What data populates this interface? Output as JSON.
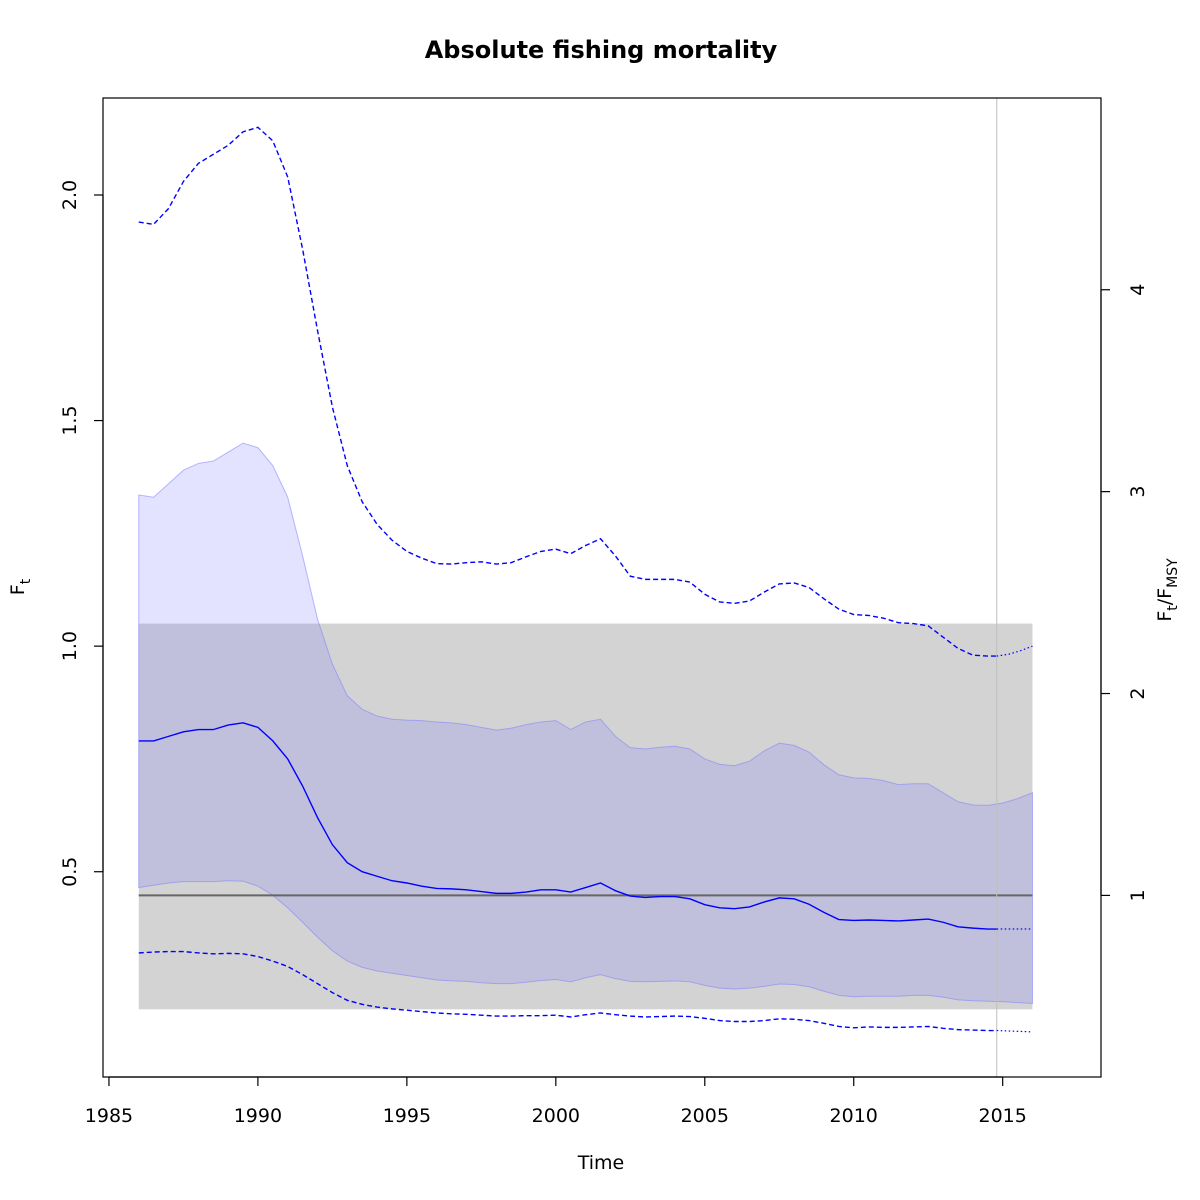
{
  "chart_data": {
    "type": "line",
    "title": "Absolute fishing mortality",
    "xlabel": "Time",
    "ylabel": "F",
    "ylabel_sub": "t",
    "y2label_num": "F",
    "y2label_num_sub": "t",
    "y2label_sep": "/",
    "y2label_den": "F",
    "y2label_den_sub": "MSY",
    "xlim": [
      1984.8,
      2018.3
    ],
    "ylim": [
      0.045,
      2.215
    ],
    "y2_scale": 0.4475,
    "xticks": [
      "1985",
      "1990",
      "1995",
      "2000",
      "2005",
      "2010",
      "2015"
    ],
    "yticks": [
      "0.5",
      "1.0",
      "1.5",
      "2.0"
    ],
    "y2ticks": [
      "1",
      "2",
      "3",
      "4"
    ],
    "last_data_year": 2014.8,
    "fmsy": 0.4475,
    "fmsy_band": {
      "x": [
        1986,
        2016
      ],
      "lower": 0.195,
      "upper": 1.05
    },
    "x": [
      1986,
      1986.5,
      1987,
      1987.5,
      1988,
      1988.5,
      1989,
      1989.5,
      1990,
      1990.5,
      1991,
      1991.5,
      1992,
      1992.5,
      1993,
      1993.5,
      1994,
      1994.5,
      1995,
      1995.5,
      1996,
      1996.5,
      1997,
      1997.5,
      1998,
      1998.5,
      1999,
      1999.5,
      2000,
      2000.5,
      2001,
      2001.5,
      2002,
      2002.5,
      2003,
      2003.5,
      2004,
      2004.5,
      2005,
      2005.5,
      2006,
      2006.5,
      2007,
      2007.5,
      2008,
      2008.5,
      2009,
      2009.5,
      2010,
      2010.5,
      2011,
      2011.5,
      2012,
      2012.5,
      2013,
      2013.5,
      2014,
      2014.5,
      2014.8
    ],
    "x_pred": [
      2014.8,
      2015.2,
      2015.6,
      2016
    ],
    "series": [
      {
        "name": "",
        "style": "solid",
        "color": "#0000ff",
        "values": [
          0.79,
          0.79,
          0.8,
          0.81,
          0.815,
          0.815,
          0.825,
          0.83,
          0.82,
          0.79,
          0.75,
          0.69,
          0.62,
          0.56,
          0.52,
          0.5,
          0.49,
          0.48,
          0.475,
          0.468,
          0.463,
          0.462,
          0.46,
          0.456,
          0.452,
          0.452,
          0.455,
          0.46,
          0.46,
          0.455,
          0.465,
          0.475,
          0.458,
          0.446,
          0.443,
          0.445,
          0.445,
          0.44,
          0.427,
          0.42,
          0.418,
          0.422,
          0.433,
          0.442,
          0.44,
          0.428,
          0.41,
          0.394,
          0.392,
          0.393,
          0.392,
          0.391,
          0.393,
          0.395,
          0.388,
          0.378,
          0.375,
          0.373,
          0.373
        ],
        "pred": [
          0.373,
          0.373,
          0.373,
          0.373
        ]
      },
      {
        "name": "",
        "style": "dashed",
        "color": "#0000ff",
        "values": [
          1.94,
          1.935,
          1.97,
          2.03,
          2.07,
          2.09,
          2.11,
          2.14,
          2.15,
          2.12,
          2.04,
          1.88,
          1.7,
          1.53,
          1.4,
          1.32,
          1.27,
          1.235,
          1.21,
          1.195,
          1.183,
          1.182,
          1.185,
          1.187,
          1.182,
          1.185,
          1.198,
          1.21,
          1.215,
          1.205,
          1.223,
          1.238,
          1.2,
          1.155,
          1.148,
          1.148,
          1.148,
          1.142,
          1.115,
          1.098,
          1.095,
          1.1,
          1.12,
          1.138,
          1.14,
          1.13,
          1.105,
          1.082,
          1.07,
          1.068,
          1.062,
          1.052,
          1.05,
          1.045,
          1.02,
          0.995,
          0.98,
          0.978,
          0.978
        ],
        "pred": [
          0.978,
          0.982,
          0.99,
          1.0
        ]
      },
      {
        "name": "",
        "style": "dashed",
        "color": "#0000ff",
        "values": [
          0.32,
          0.322,
          0.323,
          0.323,
          0.32,
          0.318,
          0.319,
          0.318,
          0.312,
          0.302,
          0.29,
          0.272,
          0.252,
          0.232,
          0.215,
          0.206,
          0.2,
          0.196,
          0.193,
          0.19,
          0.187,
          0.185,
          0.184,
          0.182,
          0.18,
          0.18,
          0.181,
          0.181,
          0.182,
          0.178,
          0.183,
          0.187,
          0.183,
          0.18,
          0.178,
          0.179,
          0.18,
          0.179,
          0.175,
          0.17,
          0.168,
          0.168,
          0.17,
          0.174,
          0.173,
          0.17,
          0.164,
          0.157,
          0.154,
          0.156,
          0.155,
          0.155,
          0.156,
          0.157,
          0.153,
          0.15,
          0.149,
          0.148,
          0.148
        ],
        "pred": [
          0.148,
          0.147,
          0.146,
          0.145
        ]
      }
    ],
    "ci_band": {
      "color": "#8080ff",
      "x": [
        1986,
        1986.5,
        1987,
        1987.5,
        1988,
        1988.5,
        1989,
        1989.5,
        1990,
        1990.5,
        1991,
        1991.5,
        1992,
        1992.5,
        1993,
        1993.5,
        1994,
        1994.5,
        1995,
        1995.5,
        1996,
        1996.5,
        1997,
        1997.5,
        1998,
        1998.5,
        1999,
        1999.5,
        2000,
        2000.5,
        2001,
        2001.5,
        2002,
        2002.5,
        2003,
        2003.5,
        2004,
        2004.5,
        2005,
        2005.5,
        2006,
        2006.5,
        2007,
        2007.5,
        2008,
        2008.5,
        2009,
        2009.5,
        2010,
        2010.5,
        2011,
        2011.5,
        2012,
        2012.5,
        2013,
        2013.5,
        2014,
        2014.5,
        2015,
        2015.5,
        2016
      ],
      "upper": [
        1.335,
        1.33,
        1.36,
        1.39,
        1.405,
        1.41,
        1.43,
        1.45,
        1.44,
        1.4,
        1.33,
        1.2,
        1.06,
        0.96,
        0.89,
        0.86,
        0.845,
        0.838,
        0.836,
        0.835,
        0.832,
        0.83,
        0.826,
        0.82,
        0.814,
        0.818,
        0.826,
        0.832,
        0.835,
        0.815,
        0.832,
        0.838,
        0.8,
        0.775,
        0.772,
        0.776,
        0.778,
        0.772,
        0.75,
        0.738,
        0.735,
        0.745,
        0.768,
        0.785,
        0.78,
        0.765,
        0.737,
        0.715,
        0.708,
        0.707,
        0.702,
        0.693,
        0.695,
        0.695,
        0.675,
        0.655,
        0.648,
        0.647,
        0.652,
        0.662,
        0.675
      ],
      "lower": [
        0.465,
        0.47,
        0.475,
        0.478,
        0.478,
        0.478,
        0.48,
        0.479,
        0.468,
        0.448,
        0.42,
        0.388,
        0.355,
        0.325,
        0.302,
        0.288,
        0.28,
        0.275,
        0.27,
        0.265,
        0.26,
        0.258,
        0.257,
        0.254,
        0.252,
        0.252,
        0.255,
        0.259,
        0.261,
        0.256,
        0.265,
        0.272,
        0.263,
        0.257,
        0.256,
        0.257,
        0.258,
        0.256,
        0.248,
        0.242,
        0.24,
        0.242,
        0.246,
        0.251,
        0.25,
        0.245,
        0.235,
        0.226,
        0.223,
        0.224,
        0.224,
        0.224,
        0.226,
        0.226,
        0.222,
        0.216,
        0.214,
        0.213,
        0.212,
        0.21,
        0.208
      ]
    },
    "colors": {
      "band": "#d3d3d3",
      "ci_fill": "#8080ff",
      "lines": "#0000ff",
      "fmsy_line": "#666666",
      "vline": "#bfbfbf"
    },
    "grid": false,
    "legend": "none"
  }
}
